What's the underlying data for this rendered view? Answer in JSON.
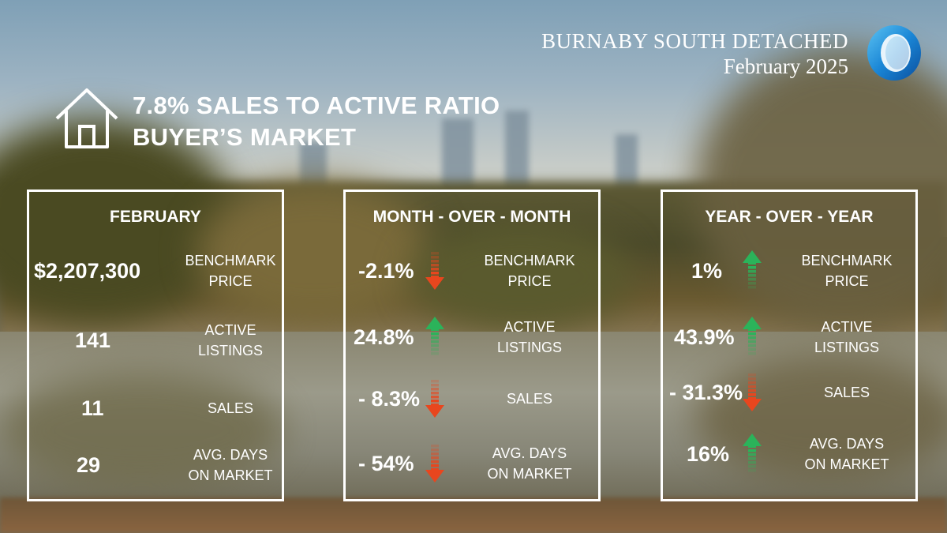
{
  "header": {
    "area": "BURNABY SOUTH DETACHED",
    "period": "February 2025",
    "ratio_line": "7.8% SALES TO ACTIVE RATIO",
    "market_line": "BUYER’S MARKET"
  },
  "icons": {
    "home": "house-outline-icon",
    "logo": "blue-ring-logo",
    "up": "green-up-arrow-icon",
    "down": "red-down-arrow-icon"
  },
  "colors": {
    "up": "#2bb35a",
    "down": "#e8461e",
    "logo": "#1a86d6"
  },
  "labels": {
    "benchmark": [
      "BENCHMARK",
      "PRICE"
    ],
    "active": [
      "ACTIVE",
      "LISTINGS"
    ],
    "sales": [
      "SALES"
    ],
    "days": [
      "AVG. DAYS",
      "ON MARKET"
    ]
  },
  "panels": [
    {
      "title": "FEBRUARY",
      "rows": [
        {
          "value": "$2,207,300"
        },
        {
          "value": "141"
        },
        {
          "value": "11"
        },
        {
          "value": "29"
        }
      ]
    },
    {
      "title": "MONTH - OVER - MONTH",
      "rows": [
        {
          "value": "-2.1%",
          "direction": "down"
        },
        {
          "value": "24.8%",
          "direction": "up"
        },
        {
          "value": "- 8.3%",
          "direction": "down"
        },
        {
          "value": "- 54%",
          "direction": "down"
        }
      ]
    },
    {
      "title": "YEAR - OVER - YEAR",
      "rows": [
        {
          "value": "1%",
          "direction": "up"
        },
        {
          "value": "43.9%",
          "direction": "up"
        },
        {
          "value": "- 31.3%",
          "direction": "down"
        },
        {
          "value": "16%",
          "direction": "up"
        }
      ]
    }
  ]
}
